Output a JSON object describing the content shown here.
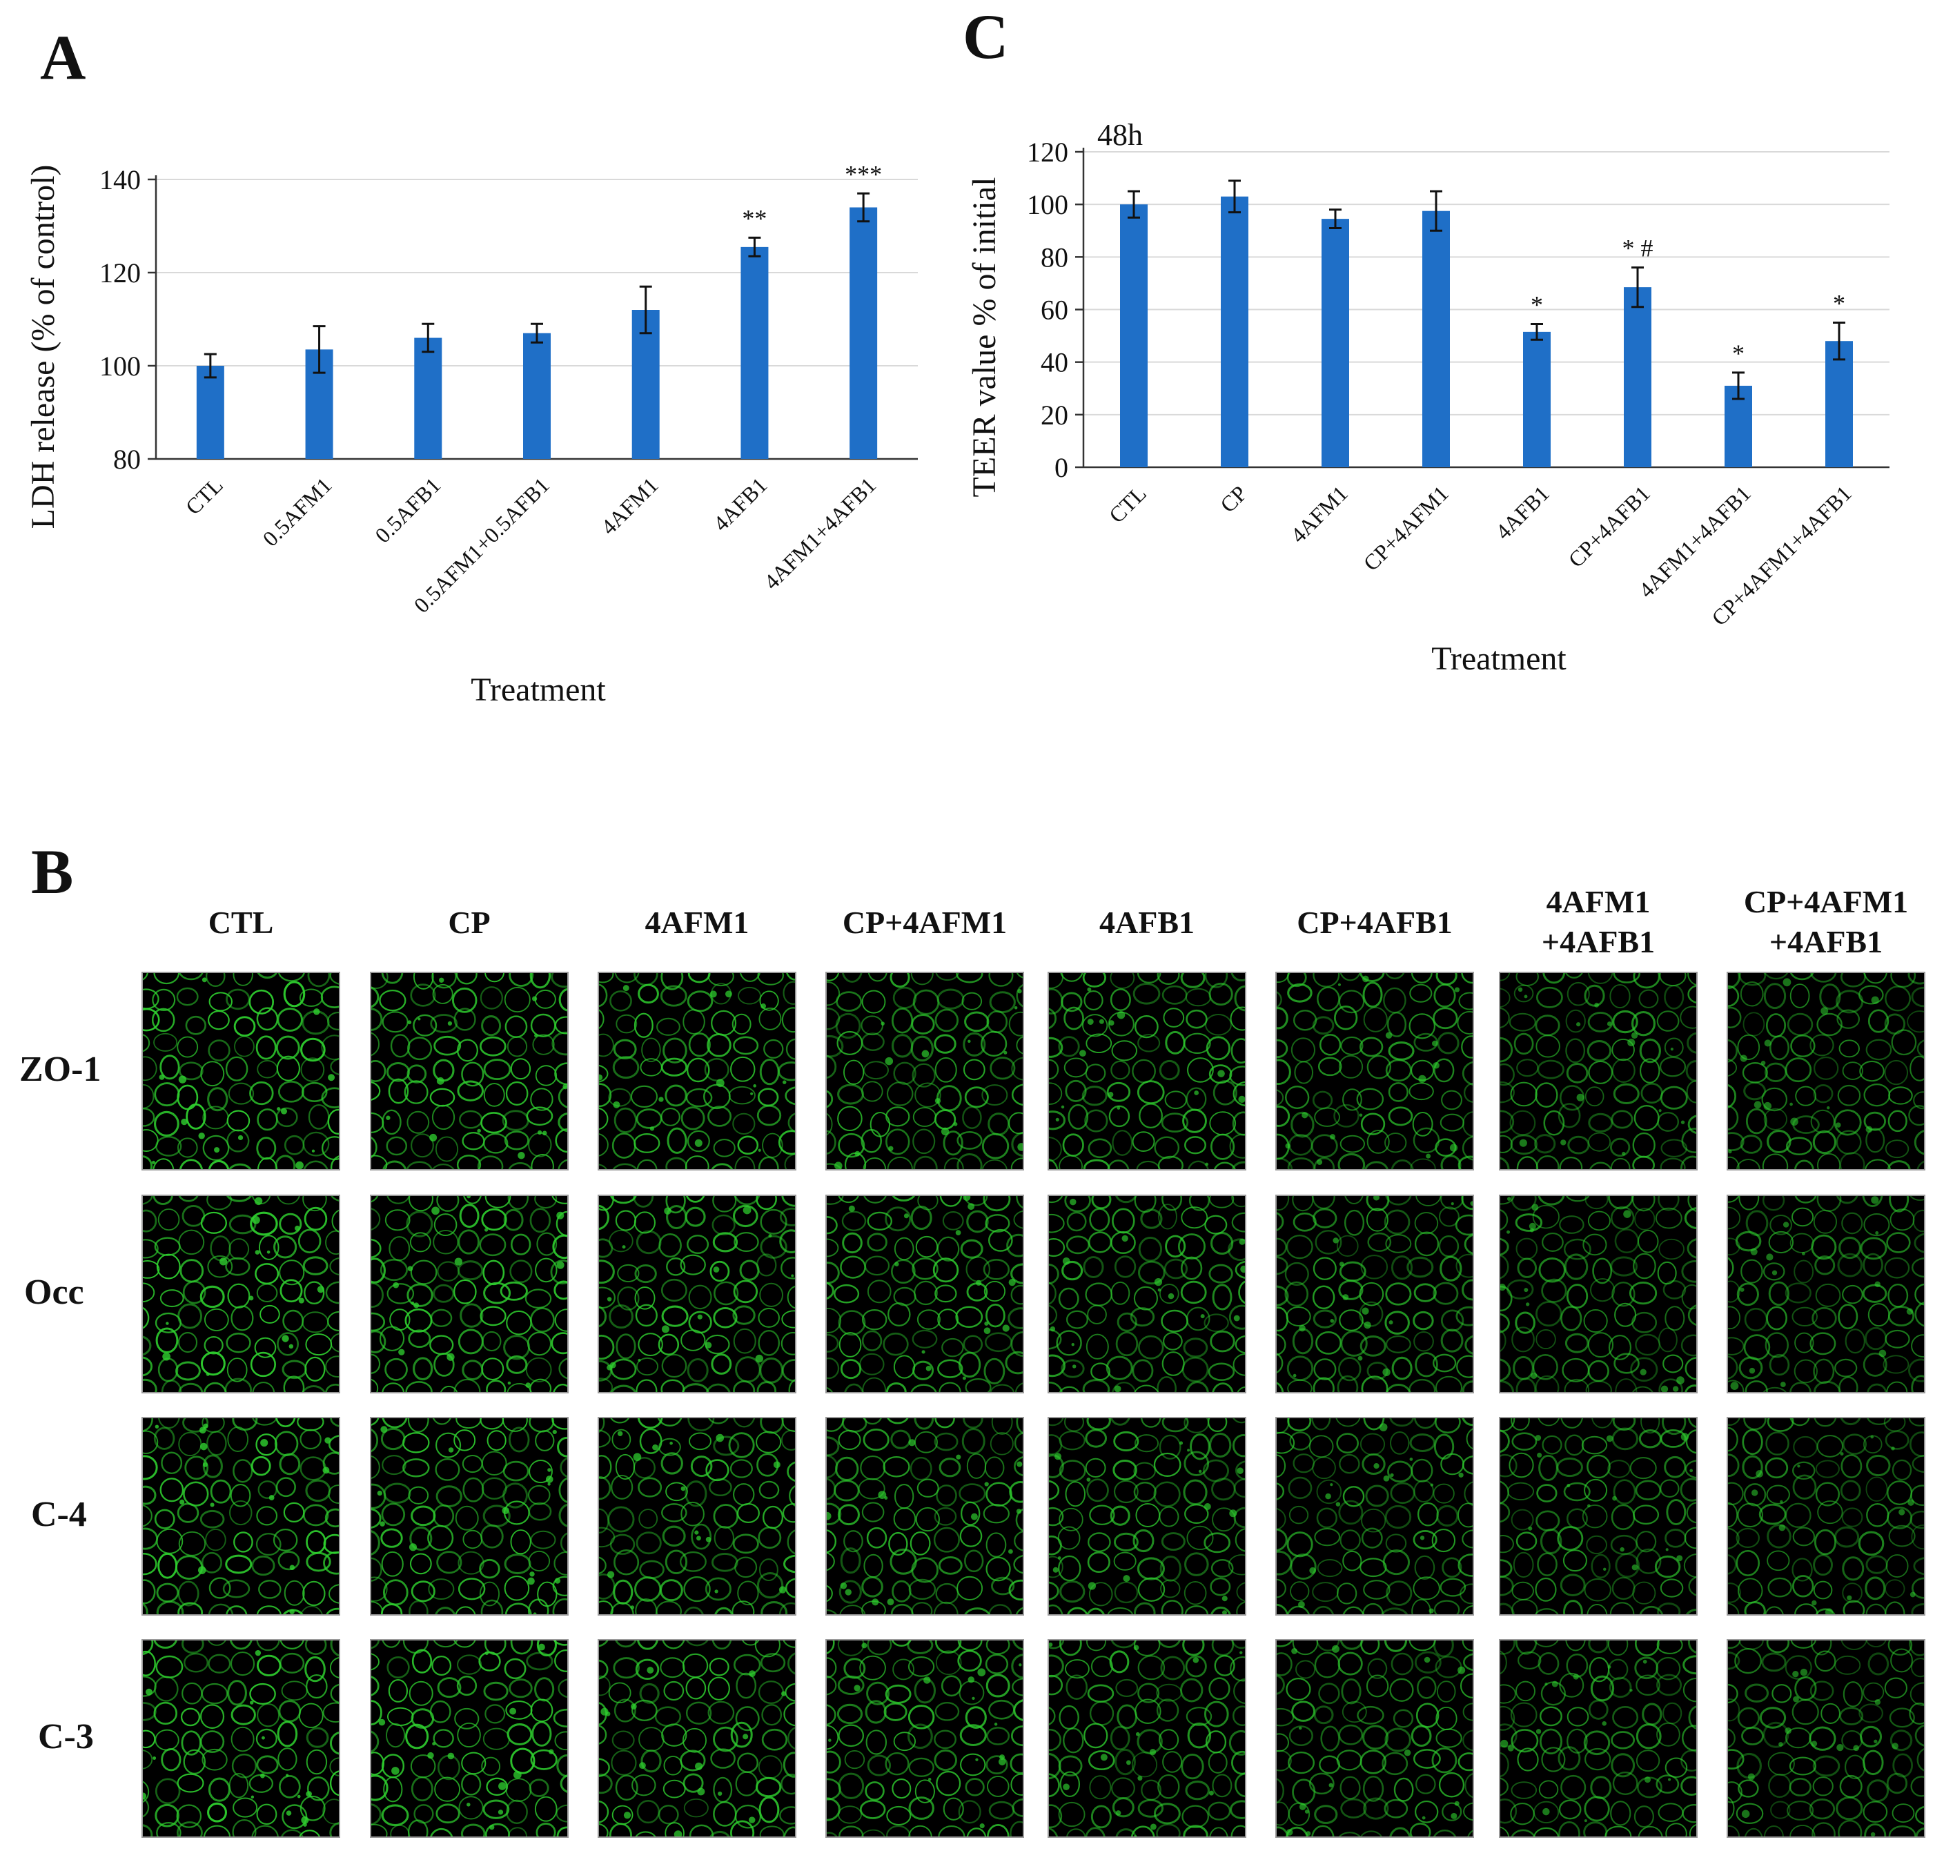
{
  "panels": {
    "a": "A",
    "b": "B",
    "c": "C"
  },
  "chart_data": [
    {
      "type": "bar",
      "panel": "A",
      "categories": [
        "CTL",
        "0.5AFM1",
        "0.5AFB1",
        "0.5AFM1+0.5AFB1",
        "4AFM1",
        "4AFB1",
        "4AFM1+4AFB1"
      ],
      "series": [
        {
          "values": [
            100,
            103.5,
            106,
            107,
            112,
            125.5,
            134
          ],
          "errors": [
            2.5,
            5,
            3,
            2,
            5,
            2,
            3
          ]
        }
      ],
      "annotations": [
        "",
        "",
        "",
        "",
        "",
        "**",
        "***"
      ],
      "xlabel": "Treatment",
      "ylabel": "LDH release (% of control)",
      "ylim": [
        80,
        140
      ],
      "yticks": [
        80,
        100,
        120,
        140
      ],
      "grid": true,
      "color": "#1f6fc7"
    },
    {
      "type": "bar",
      "panel": "C",
      "inset_label": "48h",
      "categories": [
        "CTL",
        "CP",
        "4AFM1",
        "CP+4AFM1",
        "4AFB1",
        "CP+4AFB1",
        "4AFM1+4AFB1",
        "CP+4AFM1+4AFB1"
      ],
      "series": [
        {
          "values": [
            100,
            103,
            94.5,
            97.5,
            51.5,
            68.5,
            31,
            48
          ],
          "errors": [
            5,
            6,
            3.5,
            7.5,
            3,
            7.5,
            5,
            7
          ]
        }
      ],
      "annotations": [
        "",
        "",
        "",
        "",
        "*",
        "* #",
        "*",
        "*"
      ],
      "xlabel": "Treatment",
      "ylabel": "TEER value % of initial",
      "ylim": [
        0,
        120
      ],
      "yticks": [
        0,
        20,
        40,
        60,
        80,
        100,
        120
      ],
      "grid": true,
      "color": "#1f6fc7"
    }
  ],
  "micrographs": {
    "columns": [
      "CTL",
      "CP",
      "4AFM1",
      "CP+4AFM1",
      "4AFB1",
      "CP+4AFB1",
      "4AFM1\n+4AFB1",
      "CP+4AFM1\n+4AFB1"
    ],
    "rows": [
      "ZO-1",
      "Occ",
      "C-4",
      "C-3"
    ],
    "stain_color": "#2fd12f"
  }
}
